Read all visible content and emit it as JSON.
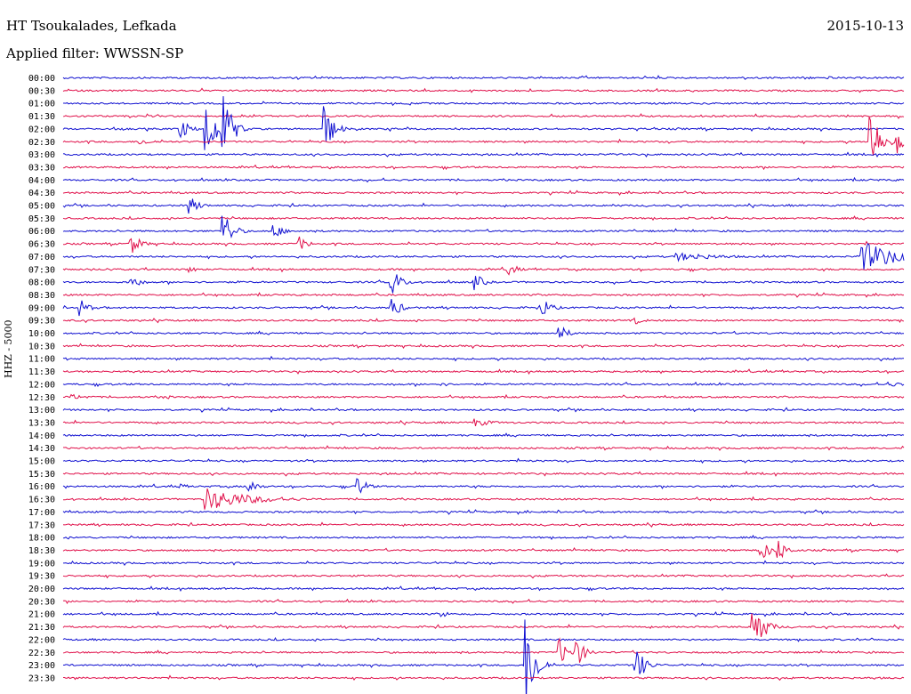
{
  "header": {
    "station": "HT Tsoukalades, Lefkada",
    "filter": "Applied filter: WWSSN-SP",
    "date": "2015-10-13",
    "channel": "HHZ - 5000"
  },
  "colors": {
    "blue": "#1010d0",
    "red": "#e0104a"
  },
  "chart_data": {
    "type": "line",
    "title": "HT Tsoukalades, Lefkada",
    "subtitle": "Applied filter: WWSSN-SP",
    "date": "2015-10-13",
    "ylabel": "HHZ - 5000",
    "xlabel": "",
    "rows": [
      "00:00",
      "00:30",
      "01:00",
      "01:30",
      "02:00",
      "02:30",
      "03:00",
      "03:30",
      "04:00",
      "04:30",
      "05:00",
      "05:30",
      "06:00",
      "06:30",
      "07:00",
      "07:30",
      "08:00",
      "08:30",
      "09:00",
      "09:30",
      "10:00",
      "10:30",
      "11:00",
      "11:30",
      "12:00",
      "12:30",
      "13:00",
      "13:30",
      "14:00",
      "14:30",
      "15:00",
      "15:30",
      "16:00",
      "16:30",
      "17:00",
      "17:30",
      "18:00",
      "18:30",
      "19:00",
      "19:30",
      "20:00",
      "20:30",
      "21:00",
      "21:30",
      "22:00",
      "22:30",
      "23:00",
      "23:30"
    ],
    "row_minutes": 30,
    "series_colors": [
      "blue",
      "red"
    ],
    "events": [
      {
        "row": 0,
        "t": 0.88,
        "amp": 3,
        "dur": 0.01
      },
      {
        "row": 0,
        "t": 0.91,
        "amp": 2,
        "dur": 0.01
      },
      {
        "row": 4,
        "t": 0.07,
        "amp": 2,
        "dur": 0.01
      },
      {
        "row": 4,
        "t": 0.14,
        "amp": 12,
        "dur": 0.01
      },
      {
        "row": 4,
        "t": 0.17,
        "amp": 40,
        "dur": 0.01
      },
      {
        "row": 4,
        "t": 0.19,
        "amp": 45,
        "dur": 0.01
      },
      {
        "row": 4,
        "t": 0.31,
        "amp": 30,
        "dur": 0.01
      },
      {
        "row": 5,
        "t": 0.09,
        "amp": 4,
        "dur": 0.02
      },
      {
        "row": 5,
        "t": 0.96,
        "amp": 45,
        "dur": 0.01
      },
      {
        "row": 5,
        "t": 0.99,
        "amp": 22,
        "dur": 0.01
      },
      {
        "row": 10,
        "t": 0.15,
        "amp": 12,
        "dur": 0.01
      },
      {
        "row": 12,
        "t": 0.19,
        "amp": 25,
        "dur": 0.01
      },
      {
        "row": 12,
        "t": 0.25,
        "amp": 10,
        "dur": 0.01
      },
      {
        "row": 13,
        "t": 0.08,
        "amp": 14,
        "dur": 0.01
      },
      {
        "row": 13,
        "t": 0.28,
        "amp": 9,
        "dur": 0.01
      },
      {
        "row": 14,
        "t": 0.73,
        "amp": 5,
        "dur": 0.05
      },
      {
        "row": 14,
        "t": 0.95,
        "amp": 18,
        "dur": 0.04
      },
      {
        "row": 15,
        "t": 0.15,
        "amp": 4,
        "dur": 0.01
      },
      {
        "row": 15,
        "t": 0.53,
        "amp": 8,
        "dur": 0.01
      },
      {
        "row": 16,
        "t": 0.08,
        "amp": 9,
        "dur": 0.01
      },
      {
        "row": 16,
        "t": 0.39,
        "amp": 18,
        "dur": 0.01
      },
      {
        "row": 16,
        "t": 0.49,
        "amp": 10,
        "dur": 0.01
      },
      {
        "row": 18,
        "t": 0.02,
        "amp": 10,
        "dur": 0.01
      },
      {
        "row": 18,
        "t": 0.39,
        "amp": 14,
        "dur": 0.01
      },
      {
        "row": 18,
        "t": 0.57,
        "amp": 12,
        "dur": 0.01
      },
      {
        "row": 19,
        "t": 0.68,
        "amp": 5,
        "dur": 0.01
      },
      {
        "row": 20,
        "t": 0.59,
        "amp": 10,
        "dur": 0.01
      },
      {
        "row": 24,
        "t": 0.45,
        "amp": 3,
        "dur": 0.01
      },
      {
        "row": 24,
        "t": 0.98,
        "amp": 3,
        "dur": 0.03
      },
      {
        "row": 25,
        "t": 0.01,
        "amp": 3,
        "dur": 0.03
      },
      {
        "row": 25,
        "t": 0.12,
        "amp": 3,
        "dur": 0.01
      },
      {
        "row": 27,
        "t": 0.49,
        "amp": 5,
        "dur": 0.02
      },
      {
        "row": 32,
        "t": 0.14,
        "amp": 3,
        "dur": 0.01
      },
      {
        "row": 32,
        "t": 0.22,
        "amp": 10,
        "dur": 0.01
      },
      {
        "row": 32,
        "t": 0.35,
        "amp": 12,
        "dur": 0.01
      },
      {
        "row": 33,
        "t": 0.17,
        "amp": 13,
        "dur": 0.05
      },
      {
        "row": 37,
        "t": 0.83,
        "amp": 14,
        "dur": 0.01
      },
      {
        "row": 37,
        "t": 0.85,
        "amp": 14,
        "dur": 0.01
      },
      {
        "row": 42,
        "t": 0.45,
        "amp": 4,
        "dur": 0.01
      },
      {
        "row": 43,
        "t": 0.82,
        "amp": 35,
        "dur": 0.01
      },
      {
        "row": 43,
        "t": 0.83,
        "amp": 16,
        "dur": 0.01
      },
      {
        "row": 45,
        "t": 0.59,
        "amp": 16,
        "dur": 0.01
      },
      {
        "row": 45,
        "t": 0.61,
        "amp": 18,
        "dur": 0.01
      },
      {
        "row": 46,
        "t": 0.55,
        "amp": 60,
        "dur": 0.01
      },
      {
        "row": 46,
        "t": 0.68,
        "amp": 25,
        "dur": 0.01
      }
    ]
  }
}
